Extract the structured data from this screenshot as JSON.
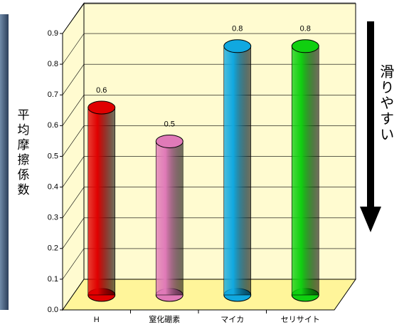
{
  "chart_data": {
    "type": "bar3d",
    "y_label": "平均摩擦係数",
    "annotation": "滑りやすい",
    "categories": [
      "H",
      "窒化硼素",
      "マイカ",
      "セリサイト"
    ],
    "values": [
      0.61,
      0.5,
      0.81,
      0.81
    ],
    "value_labels": [
      "0.6",
      "0.5",
      "0.8",
      "0.8"
    ],
    "colors": [
      "#e00000",
      "#e07ab8",
      "#10a8e0",
      "#10d010"
    ],
    "ylim": [
      0,
      0.9
    ],
    "yticks": [
      {
        "value": 0,
        "label": "0.0"
      },
      0.1,
      0.2,
      0.3,
      0.4,
      0.5,
      0.6,
      0.7,
      0.8,
      0.9
    ],
    "grid": true
  }
}
